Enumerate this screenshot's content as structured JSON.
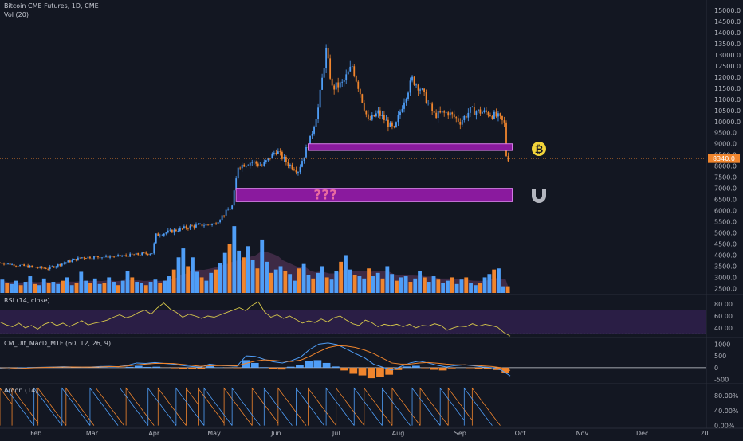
{
  "header": {
    "symbol": "Bitcoin CME Futures, 1D, CME",
    "volume_label": "Vol (20)"
  },
  "indicators": {
    "rsi_label": "RSI (14, close)",
    "macd_label": "CM_Ult_MacD_MTF (60, 12, 26, 9)",
    "aroon_label": "Aroon (14)"
  },
  "zones": {
    "upper_icon": "bitcoin-icon",
    "lower_text": "???",
    "lower_icon": "magnet-icon"
  },
  "colors": {
    "background": "#131722",
    "up": "#4f9ef7",
    "down": "#f0852d",
    "zone_fill": "#8a1a9e",
    "zone_border": "#d67ce8",
    "price_tag": "#f0852d",
    "rsi_band": "#2a1e45",
    "rsi_line": "#d6c74a",
    "aroon_up": "#f0852d",
    "aroon_down": "#4f9ef7",
    "bitcoin_icon": "#f2d43a",
    "magnet_icon": "#b2b5be"
  },
  "chart_data": [
    {
      "type": "candlestick",
      "title": "Bitcoin CME Futures, 1D, CME",
      "x_ticks": [
        "Feb",
        "Mar",
        "Apr",
        "May",
        "Jun",
        "Jul",
        "Aug",
        "Sep",
        "Oct",
        "Nov",
        "Dec",
        "20"
      ],
      "y_ticks": [
        "15000.0",
        "14500.0",
        "14000.0",
        "13500.0",
        "13000.0",
        "12500.0",
        "12000.0",
        "11500.0",
        "11000.0",
        "10500.0",
        "10000.0",
        "9500.0",
        "9000.0",
        "8500.0",
        "8000.0",
        "7500.0",
        "7000.0",
        "6500.0",
        "6000.0",
        "5500.0",
        "5000.0",
        "4500.0",
        "4000.0",
        "3500.0",
        "3000.0",
        "2500.0"
      ],
      "ylim": [
        2300,
        15250
      ],
      "last_price": "8340.0",
      "anchors": [
        [
          "2019-01-14",
          3650
        ],
        [
          "2019-01-31",
          3450
        ],
        [
          "2019-02-07",
          3400
        ],
        [
          "2019-02-15",
          3650
        ],
        [
          "2019-02-24",
          3900
        ],
        [
          "2019-03-15",
          3950
        ],
        [
          "2019-03-31",
          4100
        ],
        [
          "2019-04-02",
          4900
        ],
        [
          "2019-04-20",
          5300
        ],
        [
          "2019-05-01",
          5400
        ],
        [
          "2019-05-10",
          6200
        ],
        [
          "2019-05-13",
          8000
        ],
        [
          "2019-05-20",
          8200
        ],
        [
          "2019-05-25",
          8000
        ],
        [
          "2019-06-01",
          8700
        ],
        [
          "2019-06-07",
          8100
        ],
        [
          "2019-06-12",
          7800
        ],
        [
          "2019-06-18",
          9200
        ],
        [
          "2019-06-22",
          10600
        ],
        [
          "2019-06-26",
          13200
        ],
        [
          "2019-06-29",
          11500
        ],
        [
          "2019-07-04",
          11700
        ],
        [
          "2019-07-09",
          12500
        ],
        [
          "2019-07-13",
          11300
        ],
        [
          "2019-07-17",
          10000
        ],
        [
          "2019-07-22",
          10400
        ],
        [
          "2019-07-30",
          9600
        ],
        [
          "2019-08-04",
          11000
        ],
        [
          "2019-08-08",
          11900
        ],
        [
          "2019-08-12",
          11500
        ],
        [
          "2019-08-19",
          10300
        ],
        [
          "2019-08-26",
          10400
        ],
        [
          "2019-09-01",
          10000
        ],
        [
          "2019-09-06",
          10500
        ],
        [
          "2019-09-14",
          10400
        ],
        [
          "2019-09-20",
          10200
        ],
        [
          "2019-09-23",
          9900
        ],
        [
          "2019-09-24",
          8500
        ],
        [
          "2019-09-25",
          8340
        ]
      ],
      "volume_bars": [
        2900,
        2750,
        2700,
        2850,
        2650,
        2800,
        3050,
        2700,
        2650,
        2950,
        2750,
        2800,
        2700,
        2850,
        3000,
        2650,
        2750,
        3250,
        2850,
        2750,
        2950,
        2700,
        2750,
        3000,
        2800,
        2650,
        2850,
        3300,
        3000,
        2800,
        2750,
        2650,
        2800,
        2900,
        2750,
        2850,
        3050,
        3350,
        3900,
        4300,
        3500,
        3900,
        3250,
        3000,
        2850,
        3200,
        3350,
        3650,
        4100,
        4500,
        5300,
        4200,
        3900,
        4400,
        3800,
        3400,
        4700,
        3700,
        3200,
        3350,
        3500,
        3300,
        3150,
        2850,
        3400,
        3600,
        3100,
        2950,
        3200,
        3500,
        3000,
        2900,
        3300,
        3700,
        4000,
        3350,
        3100,
        3050,
        2950,
        3400,
        3050,
        3200,
        2950,
        3500,
        3150,
        2850,
        3000,
        3050,
        2800,
        2950,
        3300,
        3000,
        2800,
        3050,
        2900,
        2750,
        2850,
        3000,
        2700,
        2900,
        3000,
        2750,
        2650,
        2750,
        3000,
        3150,
        3350,
        3400,
        2600,
        2600
      ],
      "volume_axis": [
        "4000.0",
        "3500.0",
        "3000.0",
        "2500.0"
      ],
      "zones": [
        {
          "name": "upper",
          "from": "2019-06-17",
          "to": "2019-09-27",
          "low": 8700,
          "high": 9000
        },
        {
          "name": "lower",
          "from": "2019-05-12",
          "to": "2019-09-27",
          "low": 6400,
          "high": 7000
        }
      ]
    },
    {
      "type": "line",
      "title": "RSI (14, close)",
      "y_ticks": [
        "80.00",
        "60.00",
        "40.00"
      ],
      "ylim": [
        25,
        95
      ],
      "band": [
        30,
        70
      ],
      "series": [
        {
          "values": [
            50,
            45,
            42,
            48,
            40,
            44,
            38,
            46,
            50,
            44,
            48,
            42,
            47,
            52,
            45,
            48,
            50,
            53,
            58,
            62,
            57,
            60,
            66,
            70,
            63,
            74,
            82,
            72,
            66,
            58,
            63,
            60,
            56,
            60,
            58,
            62,
            66,
            70,
            74,
            69,
            78,
            84,
            67,
            58,
            62,
            56,
            60,
            54,
            48,
            52,
            49,
            55,
            50,
            57,
            60,
            53,
            47,
            44,
            53,
            49,
            42,
            46,
            44,
            46,
            42,
            46,
            40,
            44,
            43,
            47,
            44,
            36,
            40,
            43,
            42,
            47,
            43,
            46,
            44,
            41,
            32,
            26
          ]
        }
      ]
    },
    {
      "type": "line",
      "title": "CM_Ult_MacD_MTF (60, 12, 26, 9)",
      "y_ticks": [
        "1000",
        "500",
        "0",
        "-500"
      ],
      "ylim": [
        -650,
        1250
      ],
      "series": [
        {
          "name": "macd",
          "values": [
            -40,
            -60,
            -30,
            0,
            10,
            20,
            30,
            40,
            30,
            20,
            30,
            50,
            60,
            40,
            100,
            200,
            180,
            220,
            180,
            150,
            90,
            50,
            20,
            150,
            100,
            80,
            60,
            500,
            480,
            350,
            250,
            200,
            300,
            450,
            780,
            1000,
            1050,
            980,
            800,
            600,
            420,
            150,
            20,
            -100,
            50,
            200,
            280,
            200,
            100,
            30,
            90,
            120,
            80,
            30,
            0,
            -100,
            -350
          ]
        },
        {
          "name": "signal",
          "values": [
            -50,
            -50,
            -40,
            -20,
            0,
            10,
            20,
            25,
            30,
            25,
            25,
            30,
            45,
            45,
            70,
            120,
            150,
            180,
            185,
            175,
            140,
            100,
            60,
            80,
            90,
            90,
            80,
            180,
            280,
            330,
            310,
            280,
            260,
            320,
            480,
            680,
            850,
            930,
            920,
            860,
            750,
            600,
            400,
            200,
            150,
            150,
            200,
            220,
            190,
            150,
            120,
            120,
            100,
            75,
            50,
            0,
            -120
          ]
        }
      ],
      "histogram": [
        -10,
        -20,
        10,
        20,
        15,
        10,
        10,
        15,
        0,
        -5,
        5,
        20,
        15,
        -5,
        30,
        80,
        30,
        40,
        -5,
        -25,
        -50,
        -50,
        -40,
        70,
        10,
        -10,
        -20,
        320,
        200,
        20,
        -60,
        -80,
        40,
        130,
        300,
        320,
        200,
        50,
        -120,
        -260,
        -330,
        -450,
        -380,
        -300,
        -100,
        50,
        80,
        -20,
        -90,
        -120,
        -30,
        0,
        -20,
        -45,
        -50,
        -100,
        -230
      ]
    },
    {
      "type": "line",
      "title": "Aroon (14)",
      "y_ticks": [
        "80.00%",
        "40.00%",
        "0.00%"
      ],
      "ylim": [
        -5,
        110
      ],
      "series": [
        {
          "name": "up",
          "resets": [
            0,
            6,
            19,
            33,
            48,
            63,
            79,
            93,
            99,
            112,
            126,
            139,
            154,
            168,
            182,
            196,
            210,
            224,
            236
          ],
          "period": 14
        },
        {
          "name": "down",
          "resets": [
            3,
            17,
            31,
            45,
            60,
            74,
            88,
            102,
            116,
            132,
            148,
            163,
            177,
            191,
            206,
            220,
            232
          ],
          "period": 14
        }
      ]
    }
  ]
}
